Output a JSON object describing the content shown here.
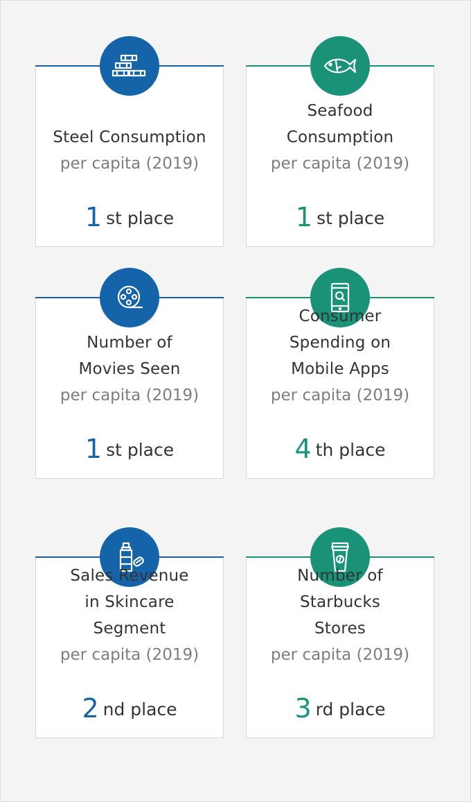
{
  "cards": [
    {
      "id": "steel",
      "color": "blue",
      "icon": "steel-beams-icon",
      "title_lines": [
        "Steel Consumption"
      ],
      "subtitle": "per capita (2019)",
      "rank_number": "1",
      "rank_suffix": "st place"
    },
    {
      "id": "seafood",
      "color": "green",
      "icon": "fish-icon",
      "title_lines": [
        "Seafood",
        "Consumption"
      ],
      "subtitle": "per capita (2019)",
      "rank_number": "1",
      "rank_suffix": "st place"
    },
    {
      "id": "movies",
      "color": "blue",
      "icon": "film-reel-icon",
      "title_lines": [
        "Number of",
        "Movies Seen"
      ],
      "subtitle": "per capita (2019)",
      "rank_number": "1",
      "rank_suffix": "st place"
    },
    {
      "id": "mobile",
      "color": "green",
      "icon": "mobile-search-icon",
      "title_lines": [
        "Consumer",
        "Spending on",
        "Mobile Apps"
      ],
      "subtitle": "per capita (2019)",
      "rank_number": "4",
      "rank_suffix": "th place"
    },
    {
      "id": "skincare",
      "color": "blue",
      "icon": "skincare-bottle-icon",
      "title_lines": [
        "Sales Revenue",
        "in Skincare",
        "Segment"
      ],
      "subtitle": "per capita (2019)",
      "rank_number": "2",
      "rank_suffix": "nd place"
    },
    {
      "id": "starbucks",
      "color": "green",
      "icon": "coffee-cup-icon",
      "title_lines": [
        "Number of",
        "Starbucks",
        "Stores"
      ],
      "subtitle": "per capita (2019)",
      "rank_number": "3",
      "rank_suffix": "rd place"
    }
  ],
  "colors": {
    "blue": "#1563a9",
    "green": "#1a9278",
    "text": "#333333",
    "muted": "#7d7d7d"
  }
}
